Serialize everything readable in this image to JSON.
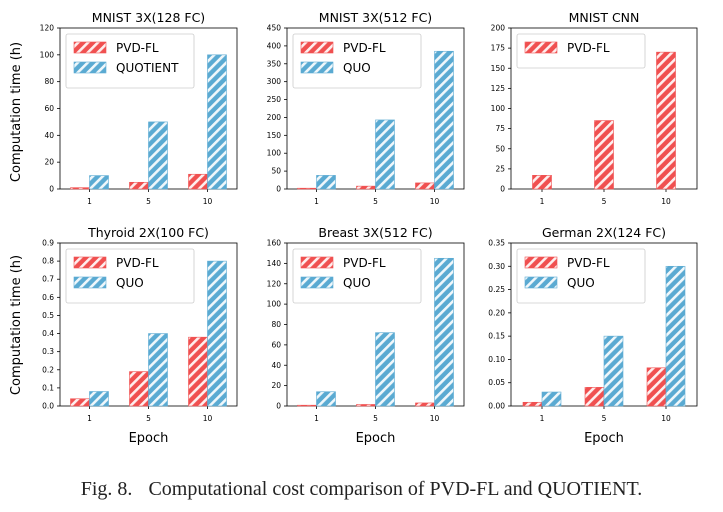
{
  "colors": {
    "pvd": "#f05050",
    "quo": "#5aaad2"
  },
  "shared_xlabel": "Epoch",
  "shared_ylabel": "Computation time (h)",
  "caption": {
    "number": "Fig. 8.",
    "text": "Computational cost comparison of PVD-FL and QUOTIENT."
  },
  "chart_data": [
    {
      "type": "bar",
      "title": "MNIST 3X(128 FC)",
      "categories": [
        "1",
        "5",
        "10"
      ],
      "ylim": [
        0,
        120
      ],
      "yticks": [
        0,
        20,
        40,
        60,
        80,
        100,
        120
      ],
      "legend": "top-left",
      "series": [
        {
          "name": "PVD-FL",
          "values": [
            1,
            5,
            11
          ]
        },
        {
          "name": "QUOTIENT",
          "values": [
            10,
            50,
            100
          ]
        }
      ]
    },
    {
      "type": "bar",
      "title": "MNIST 3X(512 FC)",
      "categories": [
        "1",
        "5",
        "10"
      ],
      "ylim": [
        0,
        450
      ],
      "yticks": [
        0,
        50,
        100,
        150,
        200,
        250,
        300,
        350,
        400,
        450
      ],
      "legend": "top-left",
      "series": [
        {
          "name": "PVD-FL",
          "values": [
            2,
            8,
            17
          ]
        },
        {
          "name": "QUO",
          "values": [
            38,
            193,
            385
          ]
        }
      ]
    },
    {
      "type": "bar",
      "title": "MNIST CNN",
      "categories": [
        "1",
        "5",
        "10"
      ],
      "ylim": [
        0,
        200
      ],
      "yticks": [
        0,
        25,
        50,
        75,
        100,
        125,
        150,
        175,
        200
      ],
      "legend": "top-left",
      "series": [
        {
          "name": "PVD-FL",
          "values": [
            17,
            85,
            170
          ]
        }
      ]
    },
    {
      "type": "bar",
      "title": "Thyroid 2X(100 FC)",
      "categories": [
        "1",
        "5",
        "10"
      ],
      "ylim": [
        0,
        0.9
      ],
      "yticks": [
        0.0,
        0.1,
        0.2,
        0.3,
        0.4,
        0.5,
        0.6,
        0.7,
        0.8,
        0.9
      ],
      "legend": "top-left",
      "series": [
        {
          "name": "PVD-FL",
          "values": [
            0.04,
            0.19,
            0.38
          ]
        },
        {
          "name": "QUO",
          "values": [
            0.08,
            0.4,
            0.8
          ]
        }
      ]
    },
    {
      "type": "bar",
      "title": "Breast 3X(512 FC)",
      "categories": [
        "1",
        "5",
        "10"
      ],
      "ylim": [
        0,
        160
      ],
      "yticks": [
        0,
        20,
        40,
        60,
        80,
        100,
        120,
        140,
        160
      ],
      "legend": "top-left",
      "series": [
        {
          "name": "PVD-FL",
          "values": [
            0.5,
            1.5,
            3
          ]
        },
        {
          "name": "QUO",
          "values": [
            14,
            72,
            145
          ]
        }
      ]
    },
    {
      "type": "bar",
      "title": "German 2X(124 FC)",
      "categories": [
        "1",
        "5",
        "10"
      ],
      "ylim": [
        0,
        0.35
      ],
      "yticks": [
        0.0,
        0.05,
        0.1,
        0.15,
        0.2,
        0.25,
        0.3,
        0.35
      ],
      "legend": "top-left",
      "series": [
        {
          "name": "PVD-FL",
          "values": [
            0.008,
            0.04,
            0.082
          ]
        },
        {
          "name": "QUO",
          "values": [
            0.03,
            0.15,
            0.3
          ]
        }
      ]
    }
  ]
}
